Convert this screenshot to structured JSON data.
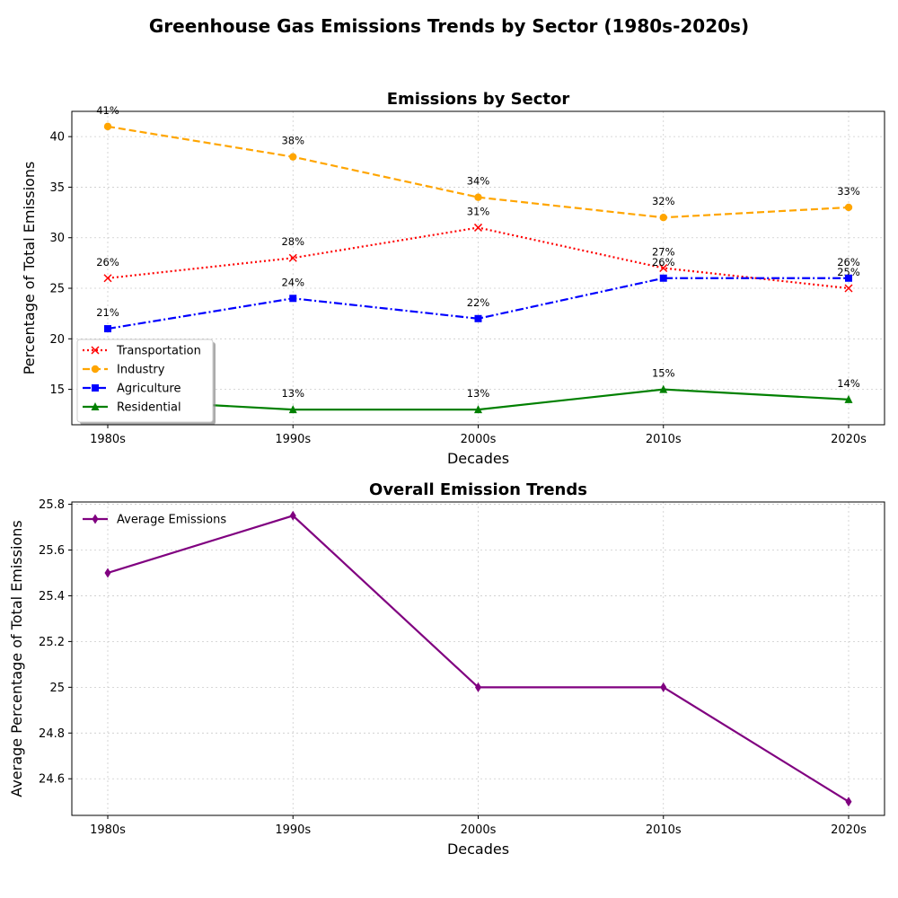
{
  "figure": {
    "suptitle": "Greenhouse Gas Emissions Trends by Sector (1980s-2020s)"
  },
  "chart_data": [
    {
      "type": "line",
      "title": "Emissions by Sector",
      "xlabel": "Decades",
      "ylabel": "Percentage of Total Emissions",
      "categories": [
        "1980s",
        "1990s",
        "2000s",
        "2010s",
        "2020s"
      ],
      "ylim": [
        11.5,
        42.5
      ],
      "yticks": [
        15,
        20,
        25,
        30,
        35,
        40
      ],
      "grid": true,
      "legend_position": "lower-left",
      "series": [
        {
          "name": "Transportation",
          "values": [
            26,
            28,
            31,
            27,
            25
          ],
          "color": "#ff0000",
          "linestyle": "dotted",
          "marker": "x",
          "labels": [
            "26%",
            "28%",
            "31%",
            "27%",
            "25%"
          ]
        },
        {
          "name": "Industry",
          "values": [
            41,
            38,
            34,
            32,
            33
          ],
          "color": "#ffa500",
          "linestyle": "dashed",
          "marker": "circle",
          "labels": [
            "41%",
            "38%",
            "34%",
            "32%",
            "33%"
          ]
        },
        {
          "name": "Agriculture",
          "values": [
            21,
            24,
            22,
            26,
            26
          ],
          "color": "#0000ff",
          "linestyle": "dashdot",
          "marker": "square",
          "labels": [
            "21%",
            "24%",
            "22%",
            "26%",
            "26%"
          ]
        },
        {
          "name": "Residential",
          "values": [
            14,
            13,
            13,
            15,
            14
          ],
          "color": "#008000",
          "linestyle": "solid",
          "marker": "triangle",
          "labels": [
            "14%",
            "13%",
            "13%",
            "15%",
            "14%"
          ]
        }
      ]
    },
    {
      "type": "line",
      "title": "Overall Emission Trends",
      "xlabel": "Decades",
      "ylabel": "Average Percentage of Total Emissions",
      "categories": [
        "1980s",
        "1990s",
        "2000s",
        "2010s",
        "2020s"
      ],
      "ylim": [
        24.44,
        25.81
      ],
      "yticks": [
        24.6,
        24.8,
        25.0,
        25.2,
        25.4,
        25.6,
        25.8
      ],
      "grid": true,
      "legend_position": "upper-left",
      "series": [
        {
          "name": "Average Emissions",
          "values": [
            25.5,
            25.75,
            25.0,
            25.0,
            24.5
          ],
          "color": "#800080",
          "linestyle": "solid",
          "marker": "diamond"
        }
      ]
    }
  ]
}
